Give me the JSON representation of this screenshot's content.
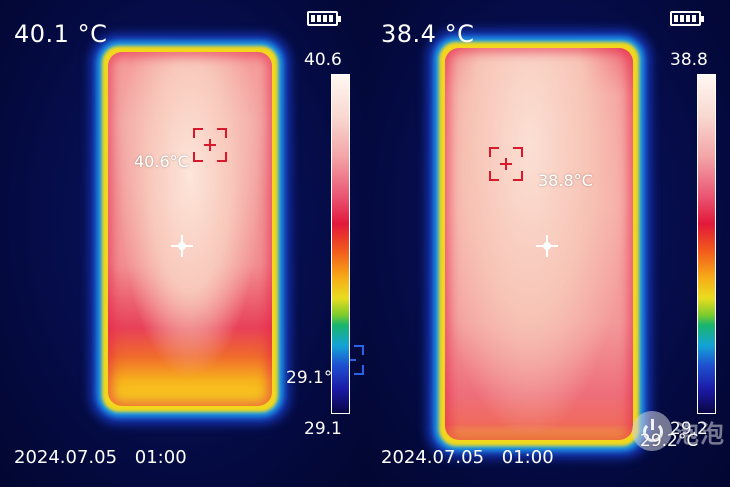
{
  "left_frame": {
    "main_temp": "40.1 °C",
    "scale_max": "40.6",
    "scale_min": "29.1",
    "marker_label": "29.1°",
    "hotspot_label": "40.6°C",
    "datetime": "2024.07.05   01:00",
    "icons": [
      "battery-icon",
      "crosshair-icon",
      "hotspot-marker-icon"
    ]
  },
  "right_frame": {
    "main_temp": "38.4 °C",
    "scale_max": "38.8",
    "scale_min": "29.2",
    "coldspot_label": "29.2°C",
    "hotspot_label": "38.8°C",
    "datetime": "2024.07.05   01:00",
    "watermark_text": "泡泡",
    "icons": [
      "battery-icon",
      "crosshair-icon",
      "hotspot-marker-icon",
      "watermark-logo-icon"
    ]
  },
  "colors": {
    "background": "#04093a",
    "marker_red": "#d7192b",
    "marker_blue": "#2a63e6",
    "text": "#ffffff"
  }
}
